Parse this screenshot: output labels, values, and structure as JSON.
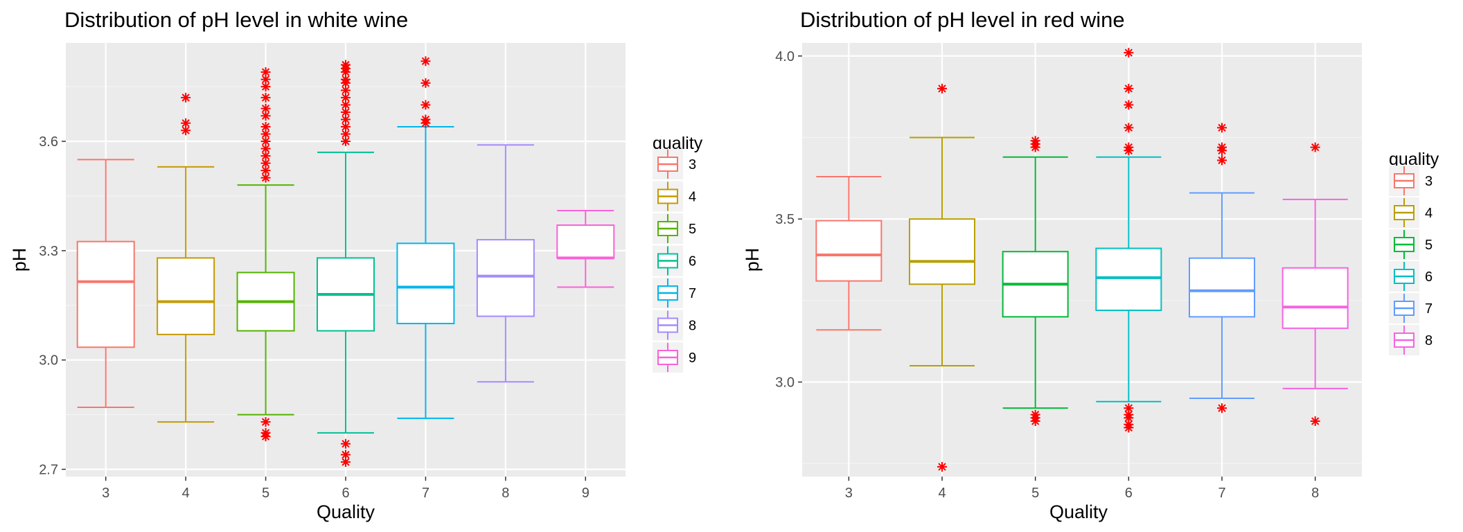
{
  "chart_data": [
    {
      "type": "box",
      "title": "Distribution of pH level in white wine",
      "xlabel": "Quality",
      "ylabel": "pH",
      "categories": [
        "3",
        "4",
        "5",
        "6",
        "7",
        "8",
        "9"
      ],
      "ylim": [
        2.68,
        3.87
      ],
      "yticks": [
        2.7,
        3.0,
        3.3,
        3.6
      ],
      "ytick_labels": [
        "2.7",
        "3.0",
        "3.3",
        "3.6"
      ],
      "legend_title": "quality",
      "legend_position": "right",
      "grid": true,
      "outlier_color": "#ff0000",
      "series": [
        {
          "category": "3",
          "color": "#F8766D",
          "whisker_low": 2.87,
          "q1": 3.035,
          "median": 3.215,
          "q3": 3.325,
          "whisker_high": 3.55,
          "outliers": []
        },
        {
          "category": "4",
          "color": "#C49A00",
          "whisker_low": 2.83,
          "q1": 3.07,
          "median": 3.16,
          "q3": 3.28,
          "whisker_high": 3.53,
          "outliers": [
            3.63,
            3.65,
            3.72
          ]
        },
        {
          "category": "5",
          "color": "#53B400",
          "whisker_low": 2.85,
          "q1": 3.08,
          "median": 3.16,
          "q3": 3.24,
          "whisker_high": 3.48,
          "outliers": [
            2.79,
            2.8,
            2.83,
            3.5,
            3.52,
            3.54,
            3.56,
            3.58,
            3.6,
            3.62,
            3.64,
            3.67,
            3.69,
            3.72,
            3.75,
            3.77,
            3.79
          ]
        },
        {
          "category": "6",
          "color": "#00C094",
          "whisker_low": 2.8,
          "q1": 3.08,
          "median": 3.18,
          "q3": 3.28,
          "whisker_high": 3.57,
          "outliers": [
            2.72,
            2.74,
            2.77,
            3.6,
            3.62,
            3.64,
            3.66,
            3.68,
            3.7,
            3.72,
            3.74,
            3.76,
            3.77,
            3.79,
            3.8,
            3.81
          ]
        },
        {
          "category": "7",
          "color": "#00B6EB",
          "whisker_low": 2.84,
          "q1": 3.1,
          "median": 3.2,
          "q3": 3.32,
          "whisker_high": 3.64,
          "outliers": [
            3.65,
            3.66,
            3.7,
            3.76,
            3.82
          ]
        },
        {
          "category": "8",
          "color": "#A58AFF",
          "whisker_low": 2.94,
          "q1": 3.12,
          "median": 3.23,
          "q3": 3.33,
          "whisker_high": 3.59,
          "outliers": []
        },
        {
          "category": "9",
          "color": "#FB61D7",
          "whisker_low": 3.2,
          "q1": 3.28,
          "median": 3.28,
          "q3": 3.37,
          "whisker_high": 3.41,
          "outliers": []
        }
      ]
    },
    {
      "type": "box",
      "title": "Distribution of pH level in red wine",
      "xlabel": "Quality",
      "ylabel": "pH",
      "categories": [
        "3",
        "4",
        "5",
        "6",
        "7",
        "8"
      ],
      "ylim": [
        2.71,
        4.04
      ],
      "yticks": [
        3.0,
        3.5,
        4.0
      ],
      "ytick_labels": [
        "3.0",
        "3.5",
        "4.0"
      ],
      "legend_title": "quality",
      "legend_position": "right",
      "grid": true,
      "outlier_color": "#ff0000",
      "series": [
        {
          "category": "3",
          "color": "#F8766D",
          "whisker_low": 3.16,
          "q1": 3.31,
          "median": 3.39,
          "q3": 3.495,
          "whisker_high": 3.63,
          "outliers": []
        },
        {
          "category": "4",
          "color": "#B79F00",
          "whisker_low": 3.05,
          "q1": 3.3,
          "median": 3.37,
          "q3": 3.5,
          "whisker_high": 3.75,
          "outliers": [
            2.74,
            3.9
          ]
        },
        {
          "category": "5",
          "color": "#00BA38",
          "whisker_low": 2.92,
          "q1": 3.2,
          "median": 3.3,
          "q3": 3.4,
          "whisker_high": 3.69,
          "outliers": [
            2.88,
            2.89,
            2.9,
            3.72,
            3.73,
            3.74
          ]
        },
        {
          "category": "6",
          "color": "#00BFC4",
          "whisker_low": 2.94,
          "q1": 3.22,
          "median": 3.32,
          "q3": 3.41,
          "whisker_high": 3.69,
          "outliers": [
            2.86,
            2.87,
            2.89,
            2.9,
            2.92,
            3.71,
            3.72,
            3.78,
            3.85,
            3.9,
            4.01
          ]
        },
        {
          "category": "7",
          "color": "#619CFF",
          "whisker_low": 2.95,
          "q1": 3.2,
          "median": 3.28,
          "q3": 3.38,
          "whisker_high": 3.58,
          "outliers": [
            2.92,
            3.68,
            3.71,
            3.72,
            3.78
          ]
        },
        {
          "category": "8",
          "color": "#F564E3",
          "whisker_low": 2.98,
          "q1": 3.165,
          "median": 3.23,
          "q3": 3.35,
          "whisker_high": 3.56,
          "outliers": [
            2.88,
            3.72
          ]
        }
      ]
    }
  ]
}
